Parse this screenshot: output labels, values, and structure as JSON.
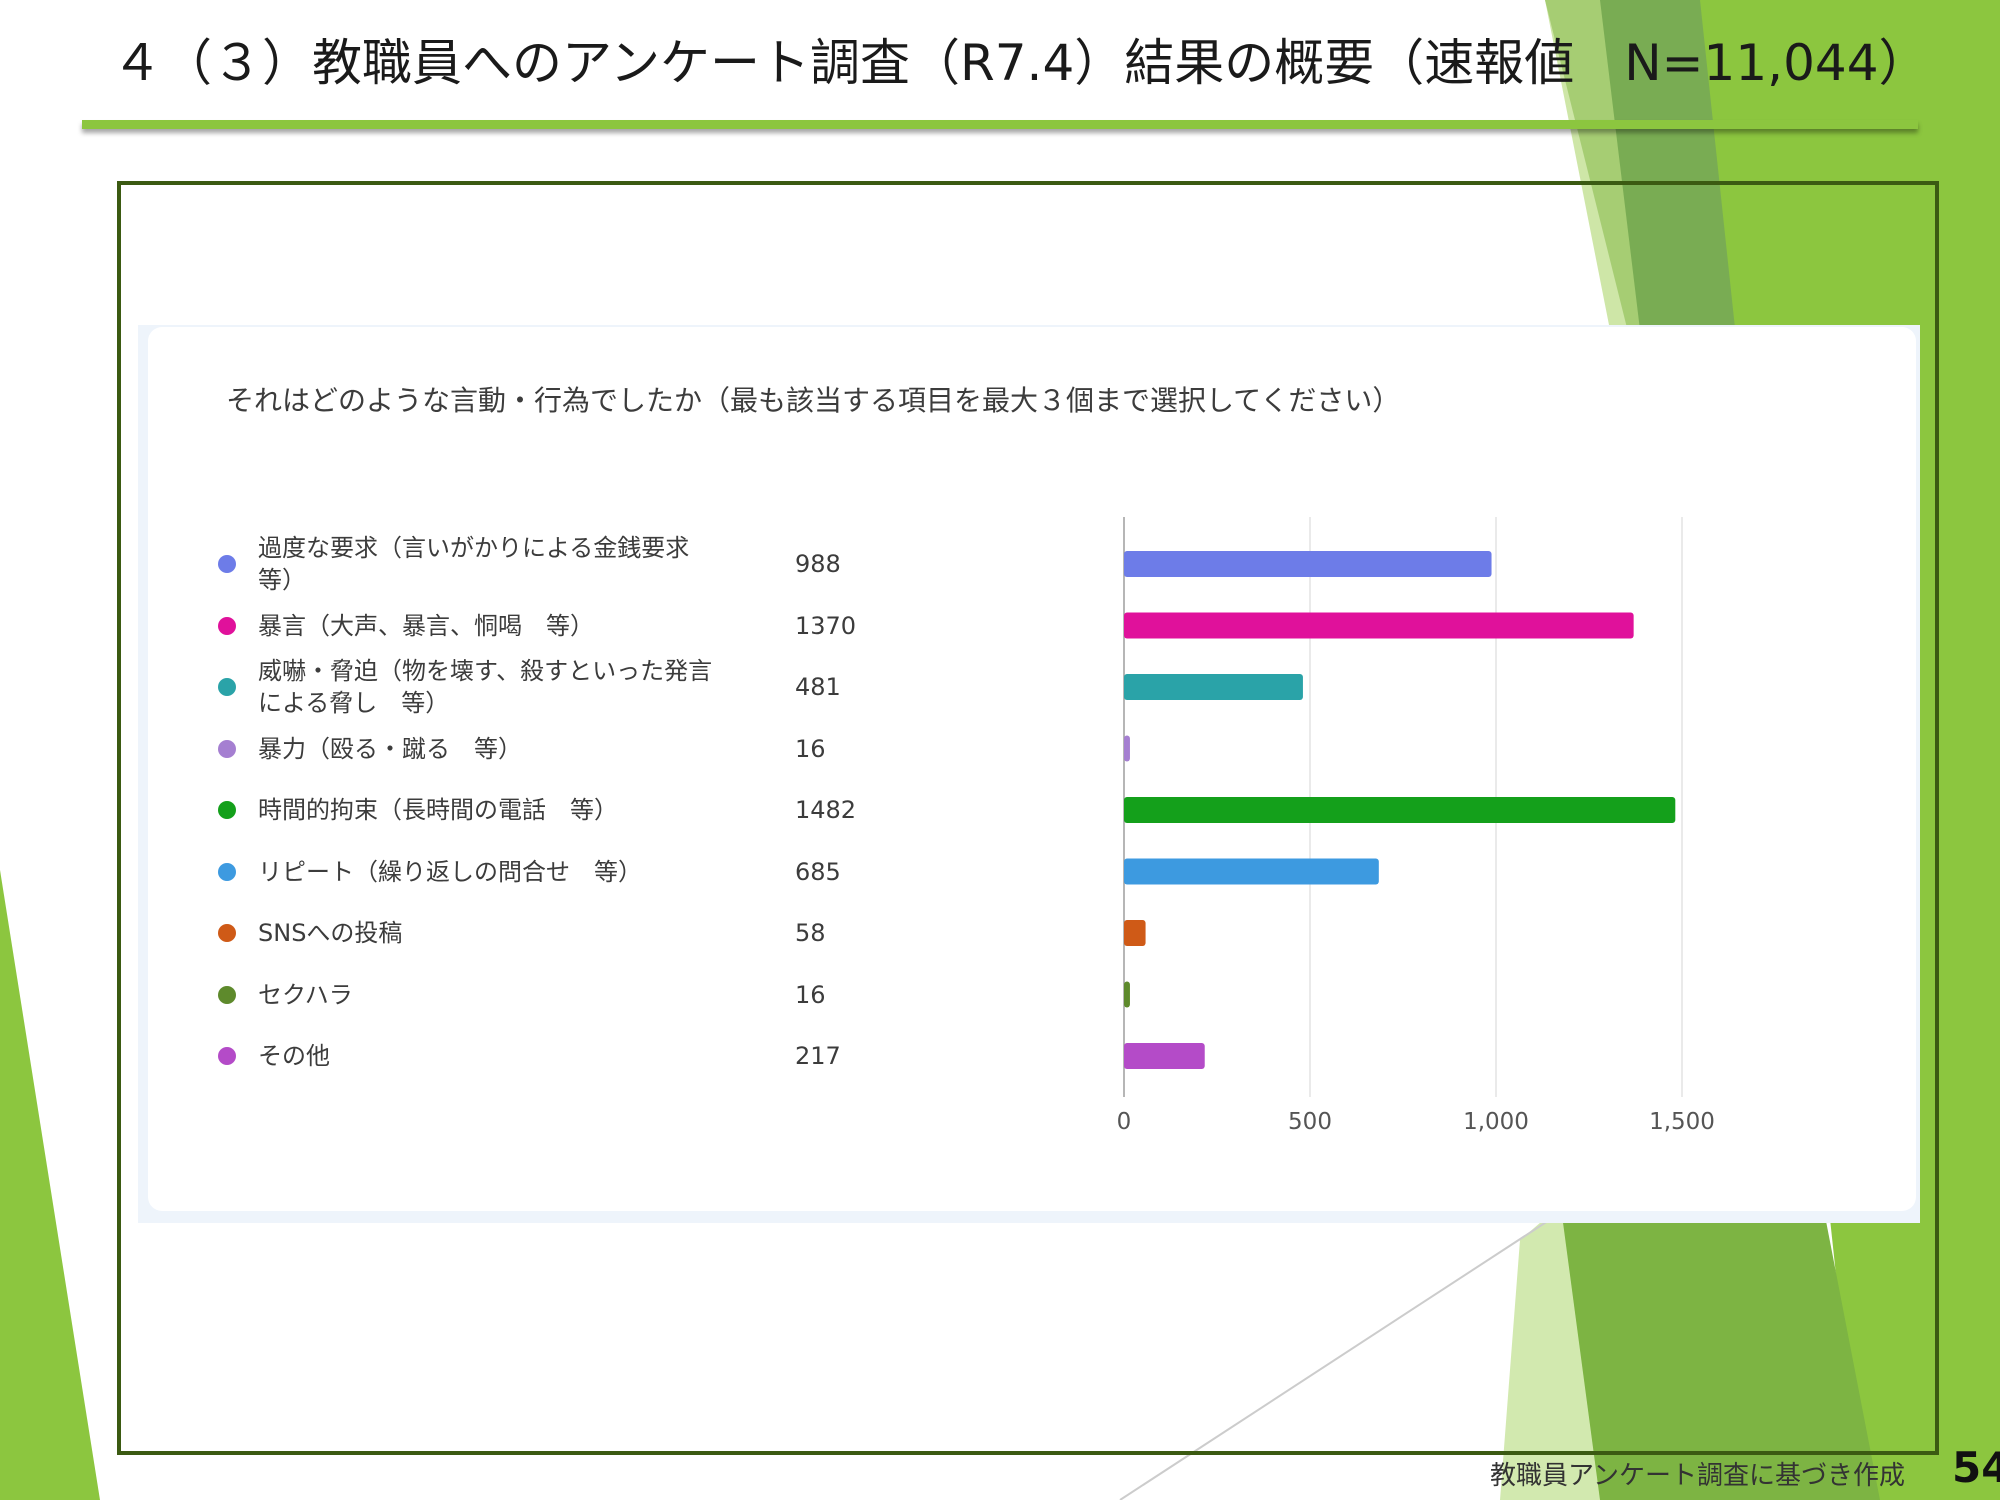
{
  "slide": {
    "title": "４（３）教職員へのアンケート調査（R7.4）結果の概要（速報値　N=11,044）",
    "footer": "教職員アンケート調査に基づき作成",
    "page_number": "54"
  },
  "colors": {
    "accent_green": "#8cc63f",
    "frame": "#3b5a12"
  },
  "chart_data": {
    "type": "bar",
    "orientation": "horizontal",
    "title": "それはどのような言動・行為でしたか（最も該当する項目を最大３個まで選択してください）",
    "categories": [
      "過度な要求（言いがかりによる金銭要求　等）",
      "暴言（大声、暴言、恫喝　等）",
      "威嚇・脅迫（物を壊す、殺すといった発言による脅し　等）",
      "暴力（殴る・蹴る　等）",
      "時間的拘束（長時間の電話　等）",
      "リピート（繰り返しの問合せ　等）",
      "SNSへの投稿",
      "セクハラ",
      "その他"
    ],
    "values": [
      988,
      1370,
      481,
      16,
      1482,
      685,
      58,
      16,
      217
    ],
    "value_labels": [
      "988",
      "1370",
      "481",
      "16",
      "1482",
      "685",
      "58",
      "16",
      "217"
    ],
    "colors": [
      "#6d7ce8",
      "#e0119b",
      "#2aa3a8",
      "#a57fd1",
      "#14a01b",
      "#3d9ae0",
      "#cf5a17",
      "#5e8a2c",
      "#b44bc8"
    ],
    "xticks": [
      "0",
      "500",
      "1,000",
      "1,500"
    ],
    "xlim": [
      0,
      1500
    ],
    "grid": true,
    "legend": "left"
  }
}
